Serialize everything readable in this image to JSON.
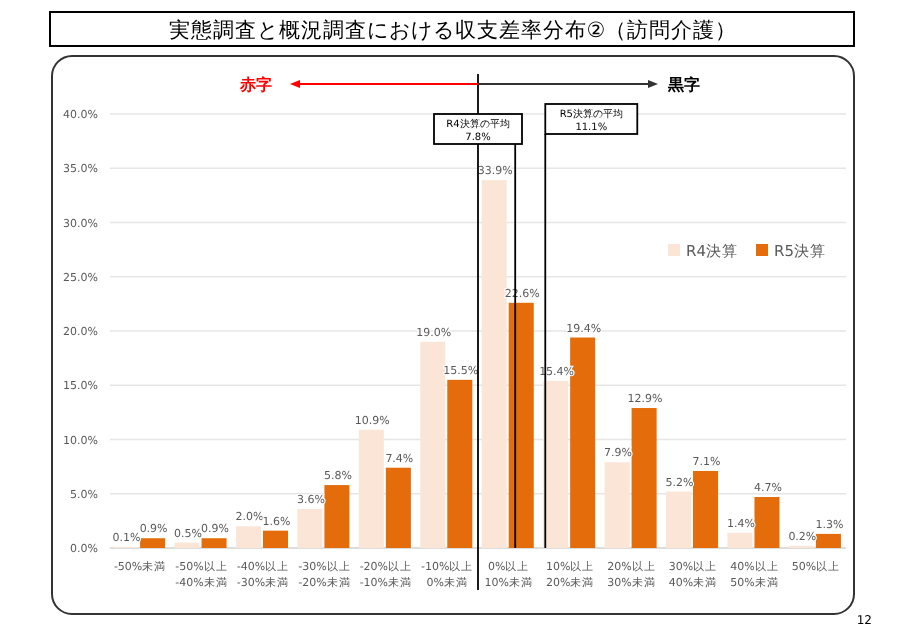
{
  "chart_data": {
    "type": "bar",
    "title": "実態調査と概況調査における収支差率分布②（訪問介護）",
    "categories": [
      "-50%未満",
      "-50%以上\n-40%未満",
      "-40%以上\n-30%未満",
      "-30%以上\n-20%未満",
      "-20%以上\n-10%未満",
      "-10%以上\n0%未満",
      "0%以上\n10%未満",
      "10%以上\n20%未満",
      "20%以上\n30%未満",
      "30%以上\n40%未満",
      "40%以上\n50%未満",
      "50%以上"
    ],
    "series": [
      {
        "name": "R4決算",
        "color": "#fbe5d6",
        "values": [
          0.1,
          0.5,
          2.0,
          3.6,
          10.9,
          19.0,
          33.9,
          15.4,
          7.9,
          5.2,
          1.4,
          0.2
        ],
        "value_labels": [
          "0.1%",
          "0.5%",
          "2.0%",
          "3.6%",
          "10.9%",
          "19.0%",
          "33.9%",
          "15.4%",
          "7.9%",
          "5.2%",
          "1.4%",
          "0.2%"
        ]
      },
      {
        "name": "R5決算",
        "color": "#e46c0a",
        "values": [
          0.9,
          0.9,
          1.6,
          5.8,
          7.4,
          15.5,
          22.6,
          19.4,
          12.9,
          7.1,
          4.7,
          1.3
        ],
        "value_labels": [
          "0.9%",
          "0.9%",
          "1.6%",
          "5.8%",
          "7.4%",
          "15.5%",
          "22.6%",
          "19.4%",
          "12.9%",
          "7.1%",
          "4.7%",
          "1.3%"
        ]
      }
    ],
    "ylim": [
      0,
      40
    ],
    "yticks": [
      {
        "value": 0,
        "label": "0.0%"
      },
      {
        "value": 5,
        "label": "5.0%"
      },
      {
        "value": 10,
        "label": "10.0%"
      },
      {
        "value": 15,
        "label": "15.0%"
      },
      {
        "value": 20,
        "label": "20.0%"
      },
      {
        "value": 25,
        "label": "25.0%"
      },
      {
        "value": 30,
        "label": "30.0%"
      },
      {
        "value": 35,
        "label": "35.0%"
      },
      {
        "value": 40,
        "label": "40.0%"
      }
    ],
    "grid": "y",
    "legend": "top right",
    "annotations": [
      "赤字",
      "黒字",
      "12",
      "R4決算の平均\n7.8%",
      "R5決算の平均\n11.1%"
    ]
  }
}
